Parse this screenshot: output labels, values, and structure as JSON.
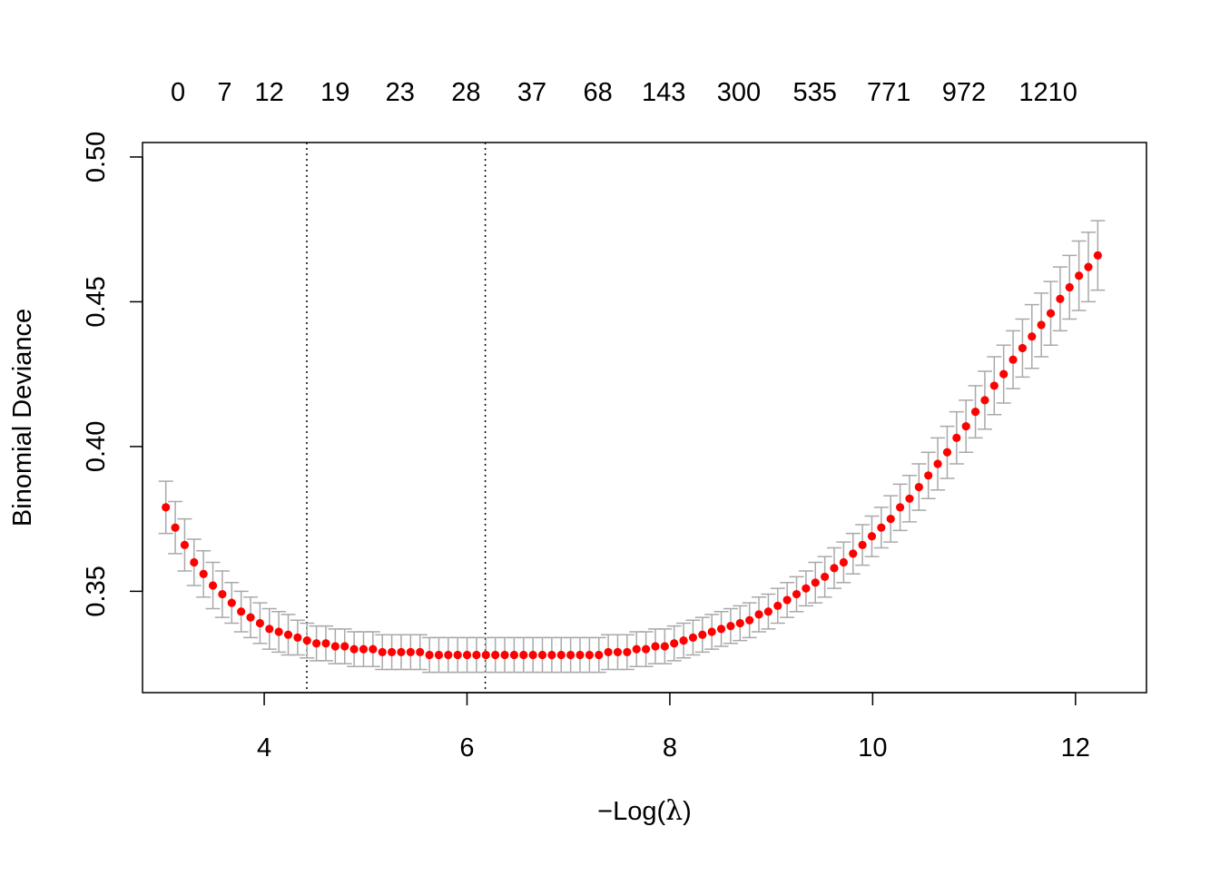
{
  "chart_data": {
    "type": "scatter",
    "xlabel_prefix": "−Log(",
    "xlabel_symbol": "λ",
    "xlabel_suffix": ")",
    "ylabel": "Binomial Deviance",
    "xlim": [
      2.8,
      12.7
    ],
    "ylim": [
      0.315,
      0.505
    ],
    "x_ticks": [
      4,
      6,
      8,
      10,
      12
    ],
    "y_ticks": [
      0.35,
      0.4,
      0.45,
      0.5
    ],
    "y_tick_labels": [
      "0.35",
      "0.40",
      "0.45",
      "0.50"
    ],
    "top_axis_labels": [
      "0",
      "7",
      "12",
      "19",
      "23",
      "28",
      "37",
      "68",
      "143",
      "300",
      "535",
      "771",
      "972",
      "1210"
    ],
    "top_axis_positions": [
      3.15,
      3.61,
      4.05,
      4.7,
      5.34,
      5.99,
      6.64,
      7.29,
      7.94,
      8.68,
      9.43,
      10.16,
      10.9,
      11.73
    ],
    "vlines": [
      4.42,
      6.18
    ],
    "vline_style": "dotted",
    "grid": false,
    "point_color": "#ff0000",
    "errorbar_color": "#a9a9a9",
    "x_start": 3.03,
    "x_end": 12.22,
    "n_points": 100,
    "mean": [
      0.379,
      0.372,
      0.366,
      0.36,
      0.356,
      0.352,
      0.349,
      0.346,
      0.343,
      0.341,
      0.339,
      0.337,
      0.336,
      0.335,
      0.334,
      0.333,
      0.332,
      0.332,
      0.331,
      0.331,
      0.33,
      0.33,
      0.33,
      0.329,
      0.329,
      0.329,
      0.329,
      0.329,
      0.328,
      0.328,
      0.328,
      0.328,
      0.328,
      0.328,
      0.328,
      0.328,
      0.328,
      0.328,
      0.328,
      0.328,
      0.328,
      0.328,
      0.328,
      0.328,
      0.328,
      0.328,
      0.328,
      0.329,
      0.329,
      0.329,
      0.33,
      0.33,
      0.331,
      0.331,
      0.332,
      0.333,
      0.334,
      0.335,
      0.336,
      0.337,
      0.338,
      0.339,
      0.34,
      0.342,
      0.343,
      0.345,
      0.347,
      0.349,
      0.351,
      0.353,
      0.355,
      0.358,
      0.36,
      0.363,
      0.366,
      0.369,
      0.372,
      0.375,
      0.379,
      0.382,
      0.386,
      0.39,
      0.394,
      0.398,
      0.403,
      0.407,
      0.412,
      0.416,
      0.421,
      0.425,
      0.43,
      0.434,
      0.438,
      0.442,
      0.446,
      0.451,
      0.455,
      0.459,
      0.462,
      0.466
    ],
    "sd": [
      0.009,
      0.009,
      0.009,
      0.008,
      0.008,
      0.008,
      0.008,
      0.007,
      0.007,
      0.007,
      0.007,
      0.007,
      0.007,
      0.007,
      0.006,
      0.006,
      0.006,
      0.006,
      0.006,
      0.006,
      0.006,
      0.006,
      0.006,
      0.006,
      0.006,
      0.006,
      0.006,
      0.006,
      0.006,
      0.006,
      0.006,
      0.006,
      0.006,
      0.006,
      0.006,
      0.006,
      0.006,
      0.006,
      0.006,
      0.006,
      0.006,
      0.006,
      0.006,
      0.006,
      0.006,
      0.006,
      0.006,
      0.006,
      0.006,
      0.006,
      0.006,
      0.006,
      0.006,
      0.006,
      0.006,
      0.006,
      0.006,
      0.006,
      0.006,
      0.006,
      0.006,
      0.006,
      0.006,
      0.006,
      0.006,
      0.006,
      0.006,
      0.006,
      0.006,
      0.007,
      0.007,
      0.007,
      0.007,
      0.007,
      0.007,
      0.007,
      0.007,
      0.008,
      0.008,
      0.008,
      0.008,
      0.008,
      0.009,
      0.009,
      0.009,
      0.009,
      0.009,
      0.01,
      0.01,
      0.01,
      0.01,
      0.01,
      0.011,
      0.011,
      0.011,
      0.011,
      0.011,
      0.012,
      0.012,
      0.012
    ]
  }
}
